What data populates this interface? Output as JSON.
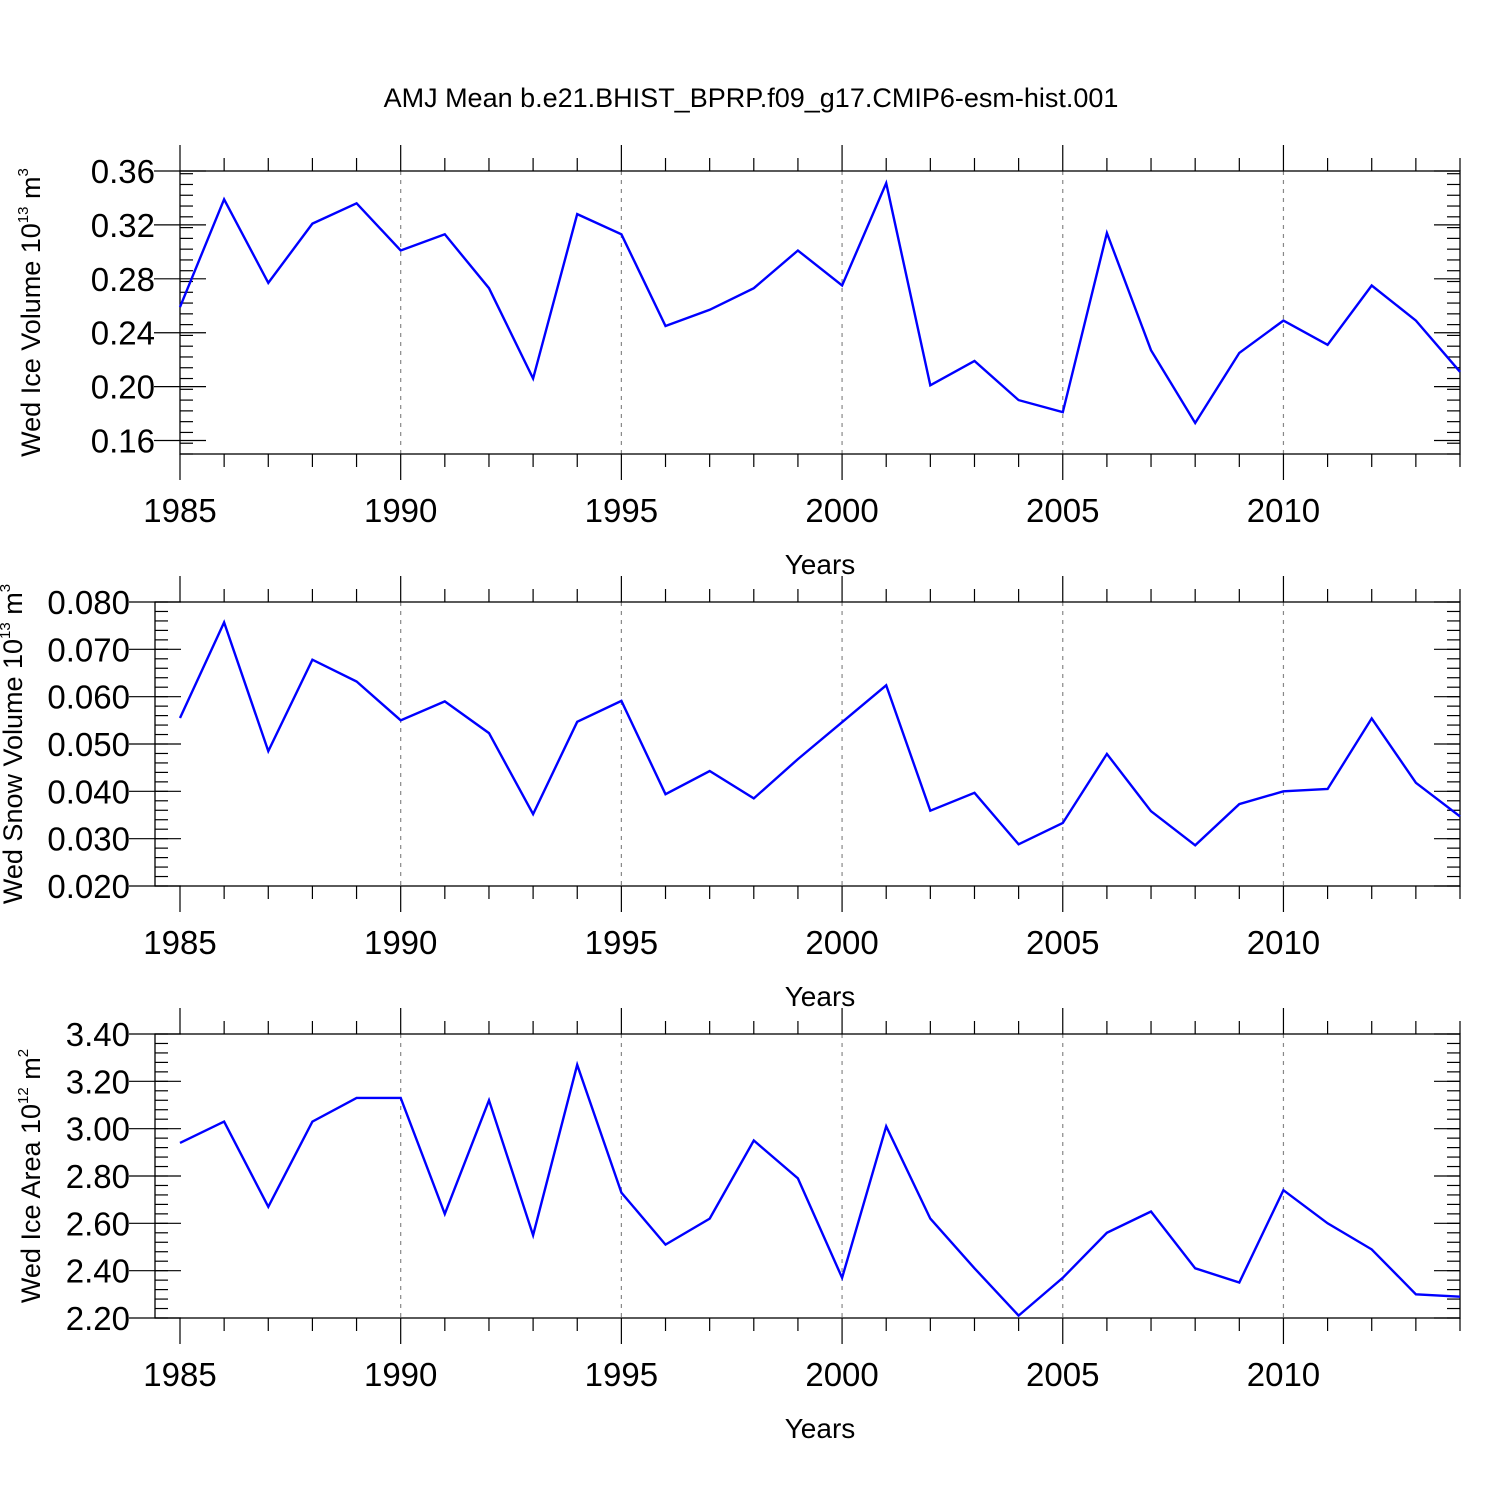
{
  "title": "AMJ Mean b.e21.BHIST_BPRP.f09_g17.CMIP6-esm-hist.001",
  "colors": {
    "series": "#0000ff",
    "axis": "#000000",
    "grid": "#888888"
  },
  "chart_data": [
    {
      "type": "line",
      "name": "ice-volume",
      "ylabel_main": "Wed Ice Volume 10",
      "ylabel_exp": "13",
      "ylabel_unit": "m",
      "ylabel_unit_exp": "3",
      "xlabel": "Years",
      "xlim": [
        1985,
        2014
      ],
      "xticks": [
        1985,
        1990,
        1995,
        2000,
        2005,
        2010
      ],
      "xtick_labels": [
        "1985",
        "1990",
        "1995",
        "2000",
        "2005",
        "2010"
      ],
      "ylim": [
        0.15,
        0.36
      ],
      "yticks": [
        0.16,
        0.2,
        0.24,
        0.28,
        0.32,
        0.36
      ],
      "ytick_labels": [
        "0.16",
        "0.20",
        "0.24",
        "0.28",
        "0.32",
        "0.36"
      ],
      "yminor_step": 0.008,
      "grid": "vertical dashed at major x ticks",
      "x": [
        1985,
        1986,
        1987,
        1988,
        1989,
        1990,
        1991,
        1992,
        1993,
        1994,
        1995,
        1996,
        1997,
        1998,
        1999,
        2000,
        2001,
        2002,
        2003,
        2004,
        2005,
        2006,
        2007,
        2008,
        2009,
        2010,
        2011,
        2012,
        2013,
        2014
      ],
      "values": [
        0.259,
        0.339,
        0.277,
        0.321,
        0.336,
        0.301,
        0.313,
        0.273,
        0.206,
        0.328,
        0.313,
        0.245,
        0.257,
        0.273,
        0.301,
        0.275,
        0.351,
        0.201,
        0.219,
        0.19,
        0.181,
        0.314,
        0.227,
        0.173,
        0.225,
        0.249,
        0.231,
        0.275,
        0.249,
        0.211
      ]
    },
    {
      "type": "line",
      "name": "snow-volume",
      "ylabel_main": "Wed Snow Volume 10",
      "ylabel_exp": "13",
      "ylabel_unit": "m",
      "ylabel_unit_exp": "3",
      "xlabel": "Years",
      "xlim": [
        1985,
        2014
      ],
      "xticks": [
        1985,
        1990,
        1995,
        2000,
        2005,
        2010
      ],
      "xtick_labels": [
        "1985",
        "1990",
        "1995",
        "2000",
        "2005",
        "2010"
      ],
      "ylim": [
        0.02,
        0.08
      ],
      "yticks": [
        0.02,
        0.03,
        0.04,
        0.05,
        0.06,
        0.07,
        0.08
      ],
      "ytick_labels": [
        "0.020",
        "0.030",
        "0.040",
        "0.050",
        "0.060",
        "0.070",
        "0.080"
      ],
      "yminor_step": 0.002,
      "grid": "vertical dashed at major x ticks",
      "x": [
        1985,
        1986,
        1987,
        1988,
        1989,
        1990,
        1991,
        1992,
        1993,
        1994,
        1995,
        1996,
        1997,
        1998,
        1999,
        2000,
        2001,
        2002,
        2003,
        2004,
        2005,
        2006,
        2007,
        2008,
        2009,
        2010,
        2011,
        2012,
        2013,
        2014
      ],
      "values": [
        0.0555,
        0.0757,
        0.0485,
        0.0678,
        0.0632,
        0.055,
        0.059,
        0.0523,
        0.0352,
        0.0547,
        0.0591,
        0.0394,
        0.0443,
        0.0385,
        0.0468,
        0.0546,
        0.0624,
        0.0359,
        0.0397,
        0.0288,
        0.0333,
        0.0479,
        0.0358,
        0.0286,
        0.0373,
        0.04,
        0.0405,
        0.0554,
        0.0418,
        0.0347
      ]
    },
    {
      "type": "line",
      "name": "ice-area",
      "ylabel_main": "Wed Ice Area 10",
      "ylabel_exp": "12",
      "ylabel_unit": "m",
      "ylabel_unit_exp": "2",
      "xlabel": "Years",
      "xlim": [
        1985,
        2014
      ],
      "xticks": [
        1985,
        1990,
        1995,
        2000,
        2005,
        2010
      ],
      "xtick_labels": [
        "1985",
        "1990",
        "1995",
        "2000",
        "2005",
        "2010"
      ],
      "ylim": [
        2.2,
        3.4
      ],
      "yticks": [
        2.2,
        2.4,
        2.6,
        2.8,
        3.0,
        3.2,
        3.4
      ],
      "ytick_labels": [
        "2.20",
        "2.40",
        "2.60",
        "2.80",
        "3.00",
        "3.20",
        "3.40"
      ],
      "yminor_step": 0.04,
      "grid": "vertical dashed at major x ticks",
      "x": [
        1985,
        1986,
        1987,
        1988,
        1989,
        1990,
        1991,
        1992,
        1993,
        1994,
        1995,
        1996,
        1997,
        1998,
        1999,
        2000,
        2001,
        2002,
        2003,
        2004,
        2005,
        2006,
        2007,
        2008,
        2009,
        2010,
        2011,
        2012,
        2013,
        2014
      ],
      "values": [
        2.94,
        3.03,
        2.67,
        3.03,
        3.13,
        3.13,
        2.64,
        3.12,
        2.55,
        3.27,
        2.73,
        2.51,
        2.62,
        2.95,
        2.79,
        2.37,
        3.01,
        2.62,
        2.41,
        2.21,
        2.37,
        2.56,
        2.65,
        2.41,
        2.35,
        2.74,
        2.6,
        2.49,
        2.3,
        2.29
      ]
    }
  ]
}
